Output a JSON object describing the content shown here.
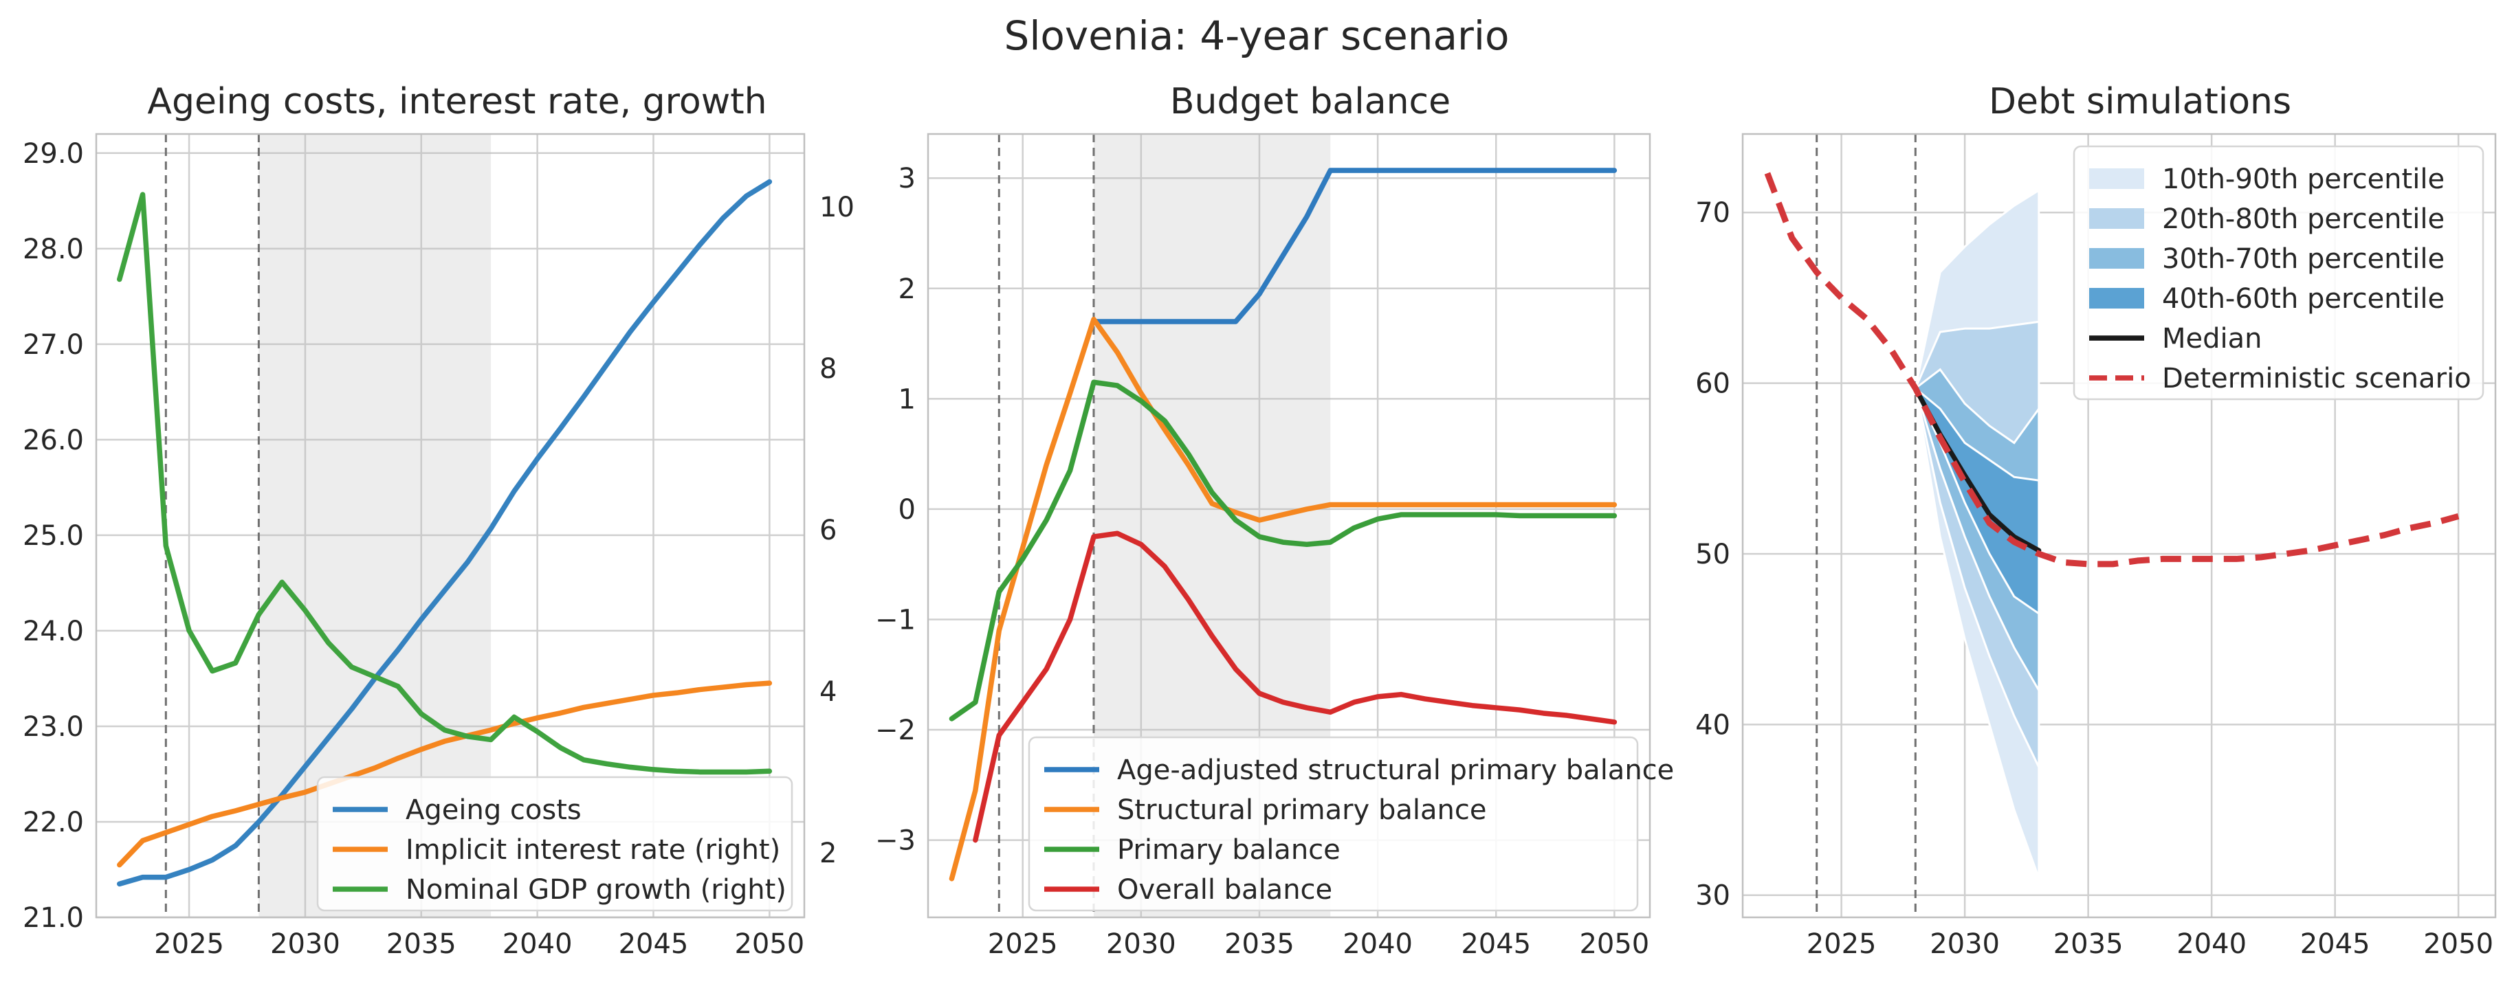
{
  "figure": {
    "title": "Slovenia: 4-year scenario"
  },
  "chart_data": [
    {
      "type": "line",
      "title": "Ageing costs, interest rate, growth",
      "xlabel": "",
      "ylabel": "",
      "xlim": [
        2021,
        2051.5
      ],
      "ylim": [
        21.0,
        29.2
      ],
      "y2lim": [
        1.2,
        10.9
      ],
      "xticks": [
        2025,
        2030,
        2035,
        2040,
        2045,
        2050
      ],
      "xtick_labels": [
        "2025",
        "2030",
        "2035",
        "2040",
        "2045",
        "2050"
      ],
      "yticks": [
        21,
        22,
        23,
        24,
        25,
        26,
        27,
        28,
        29
      ],
      "ytick_labels": [
        "21.0",
        "22.0",
        "23.0",
        "24.0",
        "25.0",
        "26.0",
        "27.0",
        "28.0",
        "29.0"
      ],
      "y2ticks": [
        2,
        4,
        6,
        8,
        10
      ],
      "y2tick_labels": [
        "2",
        "4",
        "6",
        "8",
        "10"
      ],
      "vlines": [
        2024,
        2028
      ],
      "shade": [
        2028,
        2038
      ],
      "grid": true,
      "legend_position": "lower-right",
      "series": [
        {
          "name": "Ageing costs",
          "axis": "left",
          "color": "#3582c0",
          "x": [
            2022,
            2023,
            2024,
            2025,
            2026,
            2027,
            2028,
            2029,
            2030,
            2031,
            2032,
            2033,
            2034,
            2035,
            2036,
            2037,
            2038,
            2039,
            2040,
            2041,
            2042,
            2043,
            2044,
            2045,
            2046,
            2047,
            2048,
            2049,
            2050
          ],
          "y": [
            21.35,
            21.42,
            21.42,
            21.5,
            21.6,
            21.75,
            22.0,
            22.28,
            22.58,
            22.88,
            23.18,
            23.5,
            23.8,
            24.12,
            24.42,
            24.72,
            25.07,
            25.46,
            25.8,
            26.12,
            26.45,
            26.79,
            27.13,
            27.44,
            27.74,
            28.04,
            28.32,
            28.55,
            28.7
          ]
        },
        {
          "name": "Implicit interest rate (right)",
          "axis": "right",
          "color": "#f5861f",
          "x": [
            2022,
            2023,
            2024,
            2025,
            2026,
            2027,
            2028,
            2029,
            2030,
            2031,
            2032,
            2033,
            2034,
            2035,
            2036,
            2037,
            2038,
            2039,
            2040,
            2041,
            2042,
            2043,
            2044,
            2045,
            2046,
            2047,
            2048,
            2049,
            2050
          ],
          "y": [
            1.85,
            2.15,
            2.25,
            2.35,
            2.45,
            2.52,
            2.6,
            2.68,
            2.75,
            2.85,
            2.95,
            3.05,
            3.17,
            3.28,
            3.38,
            3.45,
            3.52,
            3.6,
            3.67,
            3.73,
            3.8,
            3.85,
            3.9,
            3.95,
            3.98,
            4.02,
            4.05,
            4.08,
            4.1
          ]
        },
        {
          "name": "Nominal GDP growth (right)",
          "axis": "right",
          "color": "#3fa33f",
          "x": [
            2022,
            2023,
            2024,
            2025,
            2026,
            2027,
            2028,
            2029,
            2030,
            2031,
            2032,
            2033,
            2034,
            2035,
            2036,
            2037,
            2038,
            2039,
            2040,
            2041,
            2042,
            2043,
            2044,
            2045,
            2046,
            2047,
            2048,
            2049,
            2050
          ],
          "y": [
            9.1,
            10.15,
            5.8,
            4.75,
            4.25,
            4.35,
            4.95,
            5.35,
            5.0,
            4.6,
            4.3,
            4.18,
            4.06,
            3.72,
            3.52,
            3.44,
            3.4,
            3.68,
            3.5,
            3.3,
            3.15,
            3.1,
            3.06,
            3.03,
            3.01,
            3.0,
            3.0,
            3.0,
            3.01
          ]
        }
      ]
    },
    {
      "type": "line",
      "title": "Budget balance",
      "xlabel": "",
      "ylabel": "",
      "xlim": [
        2021,
        2051.5
      ],
      "ylim": [
        -3.7,
        3.4
      ],
      "xticks": [
        2025,
        2030,
        2035,
        2040,
        2045,
        2050
      ],
      "xtick_labels": [
        "2025",
        "2030",
        "2035",
        "2040",
        "2045",
        "2050"
      ],
      "yticks": [
        -3,
        -2,
        -1,
        0,
        1,
        2,
        3
      ],
      "ytick_labels": [
        "−3",
        "−2",
        "−1",
        "0",
        "1",
        "2",
        "3"
      ],
      "vlines": [
        2024,
        2028
      ],
      "shade": [
        2028,
        2038
      ],
      "grid": true,
      "legend_position": "lower-right",
      "series": [
        {
          "name": "Age-adjusted structural primary balance",
          "color": "#2f7bbf",
          "x": [
            2028,
            2029,
            2030,
            2031,
            2032,
            2033,
            2034,
            2035,
            2036,
            2037,
            2038,
            2039,
            2040,
            2041,
            2042,
            2043,
            2044,
            2045,
            2046,
            2047,
            2048,
            2049,
            2050
          ],
          "y": [
            1.7,
            1.7,
            1.7,
            1.7,
            1.7,
            1.7,
            1.7,
            1.95,
            2.3,
            2.65,
            3.07,
            3.07,
            3.07,
            3.07,
            3.07,
            3.07,
            3.07,
            3.07,
            3.07,
            3.07,
            3.07,
            3.07,
            3.07
          ]
        },
        {
          "name": "Structural primary balance",
          "color": "#f58720",
          "x": [
            2022,
            2023,
            2024,
            2025,
            2026,
            2027,
            2028,
            2029,
            2030,
            2031,
            2032,
            2033,
            2034,
            2035,
            2036,
            2037,
            2038,
            2039,
            2040,
            2041,
            2042,
            2043,
            2044,
            2045,
            2046,
            2047,
            2048,
            2049,
            2050
          ],
          "y": [
            -3.35,
            -2.55,
            -1.1,
            -0.35,
            0.4,
            1.05,
            1.72,
            1.42,
            1.05,
            0.72,
            0.4,
            0.05,
            -0.03,
            -0.1,
            -0.05,
            0.0,
            0.04,
            0.04,
            0.04,
            0.04,
            0.04,
            0.04,
            0.04,
            0.04,
            0.04,
            0.04,
            0.04,
            0.04,
            0.04
          ]
        },
        {
          "name": "Primary balance",
          "color": "#3a9e3a",
          "x": [
            2022,
            2023,
            2024,
            2025,
            2026,
            2027,
            2028,
            2029,
            2030,
            2031,
            2032,
            2033,
            2034,
            2035,
            2036,
            2037,
            2038,
            2039,
            2040,
            2041,
            2042,
            2043,
            2044,
            2045,
            2046,
            2047,
            2048,
            2049,
            2050
          ],
          "y": [
            -1.9,
            -1.75,
            -0.75,
            -0.45,
            -0.1,
            0.35,
            1.15,
            1.12,
            0.98,
            0.8,
            0.5,
            0.15,
            -0.1,
            -0.25,
            -0.3,
            -0.32,
            -0.3,
            -0.17,
            -0.09,
            -0.05,
            -0.05,
            -0.05,
            -0.05,
            -0.05,
            -0.06,
            -0.06,
            -0.06,
            -0.06,
            -0.06
          ]
        },
        {
          "name": "Overall balance",
          "color": "#d62b2b",
          "x": [
            2023,
            2024,
            2025,
            2026,
            2027,
            2028,
            2029,
            2030,
            2031,
            2032,
            2033,
            2034,
            2035,
            2036,
            2037,
            2038,
            2039,
            2040,
            2041,
            2042,
            2043,
            2044,
            2045,
            2046,
            2047,
            2048,
            2049,
            2050
          ],
          "y": [
            -3.0,
            -2.05,
            -1.75,
            -1.45,
            -1.0,
            -0.25,
            -0.22,
            -0.32,
            -0.52,
            -0.82,
            -1.15,
            -1.45,
            -1.67,
            -1.75,
            -1.8,
            -1.84,
            -1.75,
            -1.7,
            -1.68,
            -1.72,
            -1.75,
            -1.78,
            -1.8,
            -1.82,
            -1.85,
            -1.87,
            -1.9,
            -1.93
          ]
        }
      ]
    },
    {
      "type": "area",
      "title": "Debt simulations",
      "xlabel": "",
      "ylabel": "",
      "xlim": [
        2021,
        2051.5
      ],
      "ylim": [
        28.7,
        74.6
      ],
      "xticks": [
        2025,
        2030,
        2035,
        2040,
        2045,
        2050
      ],
      "xtick_labels": [
        "2025",
        "2030",
        "2035",
        "2040",
        "2045",
        "2050"
      ],
      "yticks": [
        30,
        40,
        50,
        60,
        70
      ],
      "ytick_labels": [
        "30",
        "40",
        "50",
        "60",
        "70"
      ],
      "vlines": [
        2024,
        2028
      ],
      "grid": true,
      "legend_position": "top-right",
      "fan_x": [
        2028,
        2029,
        2030,
        2031,
        2032,
        2033
      ],
      "bands": [
        {
          "name": "10th-90th percentile",
          "color": "#dce9f6",
          "lower": [
            59.7,
            51.0,
            45.0,
            40.0,
            35.0,
            31.0
          ],
          "upper": [
            59.7,
            66.5,
            68.0,
            69.3,
            70.4,
            71.3
          ]
        },
        {
          "name": "20th-80th percentile",
          "color": "#b7d4ec",
          "lower": [
            59.7,
            53.0,
            48.0,
            44.0,
            40.5,
            37.5
          ],
          "upper": [
            59.7,
            63.0,
            63.2,
            63.2,
            63.4,
            63.6
          ]
        },
        {
          "name": "30th-70th percentile",
          "color": "#88bcdf",
          "lower": [
            59.7,
            55.0,
            51.0,
            47.5,
            44.5,
            42.0
          ],
          "upper": [
            59.7,
            60.8,
            58.8,
            57.5,
            56.5,
            58.5
          ]
        },
        {
          "name": "40th-60th percentile",
          "color": "#5ba2d3",
          "lower": [
            59.7,
            56.5,
            53.0,
            50.0,
            47.5,
            46.5
          ],
          "upper": [
            59.7,
            58.5,
            56.5,
            55.5,
            54.5,
            54.3
          ]
        }
      ],
      "series": [
        {
          "name": "Median",
          "color": "#1a1a1a",
          "dash": "solid",
          "x": [
            2028,
            2029,
            2030,
            2031,
            2032,
            2033
          ],
          "y": [
            59.7,
            57.0,
            54.6,
            52.3,
            51.0,
            50.2
          ]
        },
        {
          "name": "Deterministic scenario",
          "color": "#d3373a",
          "dash": "dashed",
          "x": [
            2022,
            2023,
            2024,
            2025,
            2026,
            2027,
            2028,
            2029,
            2030,
            2031,
            2032,
            2033,
            2034,
            2035,
            2036,
            2037,
            2038,
            2039,
            2040,
            2041,
            2042,
            2043,
            2044,
            2045,
            2046,
            2047,
            2048,
            2049,
            2050
          ],
          "y": [
            72.3,
            68.5,
            66.5,
            65.0,
            63.8,
            62.0,
            59.7,
            56.8,
            54.2,
            51.8,
            50.7,
            50.0,
            49.5,
            49.4,
            49.4,
            49.6,
            49.7,
            49.7,
            49.7,
            49.7,
            49.8,
            50.0,
            50.2,
            50.5,
            50.8,
            51.1,
            51.5,
            51.8,
            52.2
          ]
        }
      ]
    }
  ]
}
